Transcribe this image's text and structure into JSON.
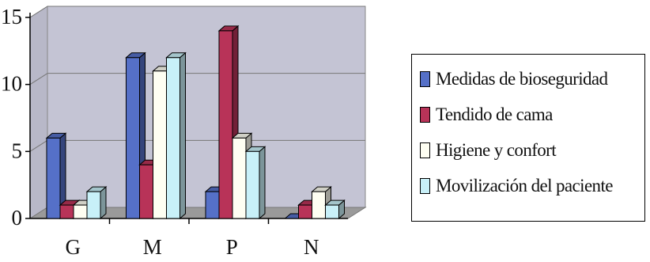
{
  "chart_data": {
    "type": "bar",
    "categories": [
      "G",
      "M",
      "P",
      "N"
    ],
    "series": [
      {
        "name": "Medidas de bioseguridad",
        "values": [
          6,
          12,
          2,
          0
        ],
        "color": "#5570c8"
      },
      {
        "name": "Tendido de cama",
        "values": [
          1,
          4,
          14,
          1
        ],
        "color": "#b83358"
      },
      {
        "name": "Higiene y confort",
        "values": [
          1,
          11,
          6,
          2
        ],
        "color": "#fefef2"
      },
      {
        "name": "Movilización del paciente",
        "values": [
          2,
          12,
          5,
          1
        ],
        "color": "#c8f0f8"
      }
    ],
    "yticks": [
      0,
      5,
      10,
      15
    ],
    "ylim": [
      0,
      15
    ],
    "grid": true,
    "legend_position": "right",
    "title": "",
    "xlabel": "",
    "ylabel": ""
  }
}
